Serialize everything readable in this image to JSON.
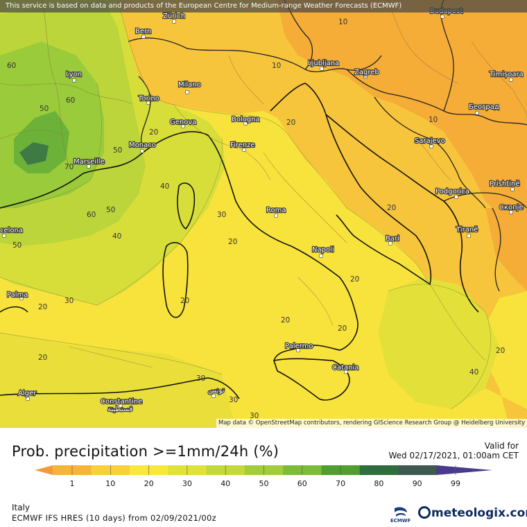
{
  "notice": "This service is based on data and products of the European Centre for Medium-range Weather Forecasts (ECMWF)",
  "attribution": "Map data © OpenStreetMap contributors, rendering GIScience Research Group @ Heidelberg University",
  "title": "Prob. precipitation >=1mm/24h (%)",
  "valid_label": "Valid for",
  "valid_date": "Wed 02/17/2021, 01:00am CET",
  "region": "Italy",
  "model_run": "ECMWF IFS HRES (10 days) from 02/09/2021/00z",
  "ecmwf_label": "ECMWF",
  "brand": "meteologix.com",
  "scale": {
    "ticks": [
      "1",
      "10",
      "20",
      "30",
      "40",
      "50",
      "60",
      "70",
      "80",
      "90",
      "99"
    ],
    "colors": [
      "#f29a3a",
      "#f6b43a",
      "#f9cf3a",
      "#f8e83c",
      "#e0e23a",
      "#c3d83a",
      "#a2cc3a",
      "#7cbc38",
      "#4f9e2e",
      "#2e6e3c",
      "#3e5a50",
      "#4a3a8a"
    ]
  },
  "cities": [
    {
      "name": "Zürich"
    },
    {
      "name": "Bern"
    },
    {
      "name": "Budapest"
    },
    {
      "name": "Lyon"
    },
    {
      "name": "Milano"
    },
    {
      "name": "Torino"
    },
    {
      "name": "Ljubljana"
    },
    {
      "name": "Zagreb"
    },
    {
      "name": "Timișoara"
    },
    {
      "name": "Genova"
    },
    {
      "name": "Bologna"
    },
    {
      "name": "Београд"
    },
    {
      "name": "Monaco"
    },
    {
      "name": "Firenze"
    },
    {
      "name": "Sarajevo"
    },
    {
      "name": "Marseille"
    },
    {
      "name": "Podgorica"
    },
    {
      "name": "Prishtinë"
    },
    {
      "name": "Roma"
    },
    {
      "name": "Скопје"
    },
    {
      "name": "Bari"
    },
    {
      "name": "Tiranë"
    },
    {
      "name": "celona"
    },
    {
      "name": "Napoli"
    },
    {
      "name": "Palma"
    },
    {
      "name": "Palermo"
    },
    {
      "name": "Catania"
    },
    {
      "name": "Alger"
    },
    {
      "name": "Constantine"
    },
    {
      "name": "قسنطينة"
    },
    {
      "name": "تونس"
    }
  ],
  "contour_labels": [
    "10",
    "10",
    "10",
    "60",
    "50",
    "60",
    "20",
    "50",
    "70",
    "20",
    "40",
    "20",
    "30",
    "50",
    "60",
    "40",
    "20",
    "20",
    "50",
    "20",
    "30",
    "20",
    "20",
    "20",
    "20",
    "30",
    "30",
    "30",
    "40",
    "20"
  ]
}
